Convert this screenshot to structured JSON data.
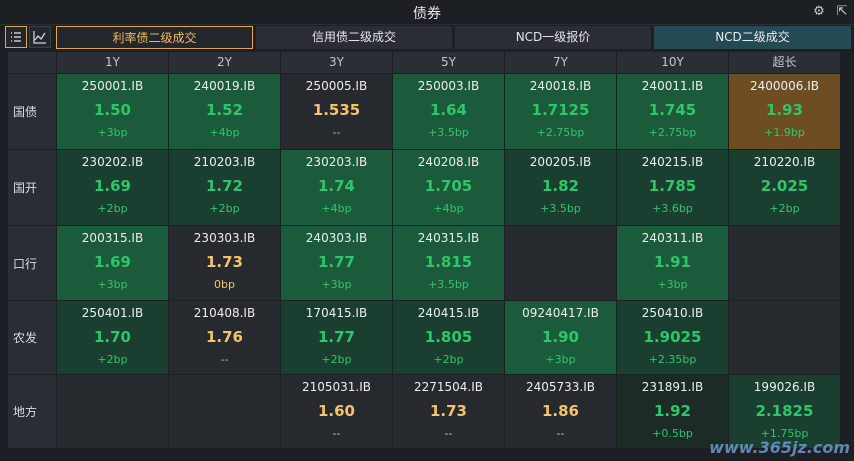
{
  "title": "债券",
  "tabs": [
    "利率债二级成交",
    "信用债二级成交",
    "NCD一级报价",
    "NCD二级成交"
  ],
  "columns": [
    "1Y",
    "2Y",
    "3Y",
    "5Y",
    "7Y",
    "10Y",
    "超长"
  ],
  "rows": [
    {
      "label": "国债",
      "cells": [
        {
          "code": "250001.IB",
          "yield": "1.50",
          "chg": "+3bp",
          "color": "g",
          "bg": "#1b5a3a"
        },
        {
          "code": "240019.IB",
          "yield": "1.52",
          "chg": "+4bp",
          "color": "g",
          "bg": "#1b5a3a"
        },
        {
          "code": "250005.IB",
          "yield": "1.535",
          "chg": "--",
          "color": "y",
          "bg": "#26292e"
        },
        {
          "code": "250003.IB",
          "yield": "1.64",
          "chg": "+3.5bp",
          "color": "g",
          "bg": "#1b5a3a"
        },
        {
          "code": "240018.IB",
          "yield": "1.7125",
          "chg": "+2.75bp",
          "color": "g",
          "bg": "#1b5a3a"
        },
        {
          "code": "240011.IB",
          "yield": "1.745",
          "chg": "+2.75bp",
          "color": "g",
          "bg": "#1b5a3a"
        },
        {
          "code": "2400006.IB",
          "yield": "1.93",
          "chg": "+1.9bp",
          "color": "g",
          "bg": "#6e4d22"
        }
      ]
    },
    {
      "label": "国开",
      "cells": [
        {
          "code": "230202.IB",
          "yield": "1.69",
          "chg": "+2bp",
          "color": "g",
          "bg": "#1a3f30"
        },
        {
          "code": "210203.IB",
          "yield": "1.72",
          "chg": "+2bp",
          "color": "g",
          "bg": "#1a3f30"
        },
        {
          "code": "230203.IB",
          "yield": "1.74",
          "chg": "+4bp",
          "color": "g",
          "bg": "#1b5a3a"
        },
        {
          "code": "240208.IB",
          "yield": "1.705",
          "chg": "+4bp",
          "color": "g",
          "bg": "#1b5a3a"
        },
        {
          "code": "200205.IB",
          "yield": "1.82",
          "chg": "+3.5bp",
          "color": "g",
          "bg": "#1a3f30"
        },
        {
          "code": "240215.IB",
          "yield": "1.785",
          "chg": "+3.6bp",
          "color": "g",
          "bg": "#1a3f30"
        },
        {
          "code": "210220.IB",
          "yield": "2.025",
          "chg": "+2bp",
          "color": "g",
          "bg": "#1a3f30"
        }
      ]
    },
    {
      "label": "口行",
      "cells": [
        {
          "code": "200315.IB",
          "yield": "1.69",
          "chg": "+3bp",
          "color": "g",
          "bg": "#1b5a3a"
        },
        {
          "code": "230303.IB",
          "yield": "1.73",
          "chg": "0bp",
          "color": "y",
          "bg": "#26292e"
        },
        {
          "code": "240303.IB",
          "yield": "1.77",
          "chg": "+3bp",
          "color": "g",
          "bg": "#1b5a3a"
        },
        {
          "code": "240315.IB",
          "yield": "1.815",
          "chg": "+3.5bp",
          "color": "g",
          "bg": "#1b5a3a"
        },
        {
          "code": "",
          "yield": "",
          "chg": "",
          "color": "n",
          "bg": "#26292e"
        },
        {
          "code": "240311.IB",
          "yield": "1.91",
          "chg": "+3bp",
          "color": "g",
          "bg": "#1b5a3a"
        },
        {
          "code": "",
          "yield": "",
          "chg": "",
          "color": "n",
          "bg": "#26292e"
        }
      ]
    },
    {
      "label": "农发",
      "cells": [
        {
          "code": "250401.IB",
          "yield": "1.70",
          "chg": "+2bp",
          "color": "g",
          "bg": "#1a3f30"
        },
        {
          "code": "210408.IB",
          "yield": "1.76",
          "chg": "--",
          "color": "y",
          "bg": "#26292e"
        },
        {
          "code": "170415.IB",
          "yield": "1.77",
          "chg": "+2bp",
          "color": "g",
          "bg": "#1a3f30"
        },
        {
          "code": "240415.IB",
          "yield": "1.805",
          "chg": "+2bp",
          "color": "g",
          "bg": "#1a3f30"
        },
        {
          "code": "09240417.IB",
          "yield": "1.90",
          "chg": "+3bp",
          "color": "g",
          "bg": "#1b5a3a"
        },
        {
          "code": "250410.IB",
          "yield": "1.9025",
          "chg": "+2.35bp",
          "color": "g",
          "bg": "#1a3f30"
        },
        {
          "code": "",
          "yield": "",
          "chg": "",
          "color": "n",
          "bg": "#26292e"
        }
      ]
    },
    {
      "label": "地方",
      "cells": [
        {
          "code": "",
          "yield": "",
          "chg": "",
          "color": "n",
          "bg": "#26292e"
        },
        {
          "code": "",
          "yield": "",
          "chg": "",
          "color": "n",
          "bg": "#26292e"
        },
        {
          "code": "2105031.IB",
          "yield": "1.60",
          "chg": "--",
          "color": "y",
          "bg": "#26292e"
        },
        {
          "code": "2271504.IB",
          "yield": "1.73",
          "chg": "--",
          "color": "y",
          "bg": "#26292e"
        },
        {
          "code": "2405733.IB",
          "yield": "1.86",
          "chg": "--",
          "color": "y",
          "bg": "#26292e"
        },
        {
          "code": "231891.IB",
          "yield": "1.92",
          "chg": "+0.5bp",
          "color": "g",
          "bg": "#1d2b27"
        },
        {
          "code": "199026.IB",
          "yield": "2.1825",
          "chg": "+1.75bp",
          "color": "g",
          "bg": "#1a3f30"
        }
      ]
    }
  ],
  "watermark": "www.365jz.com"
}
